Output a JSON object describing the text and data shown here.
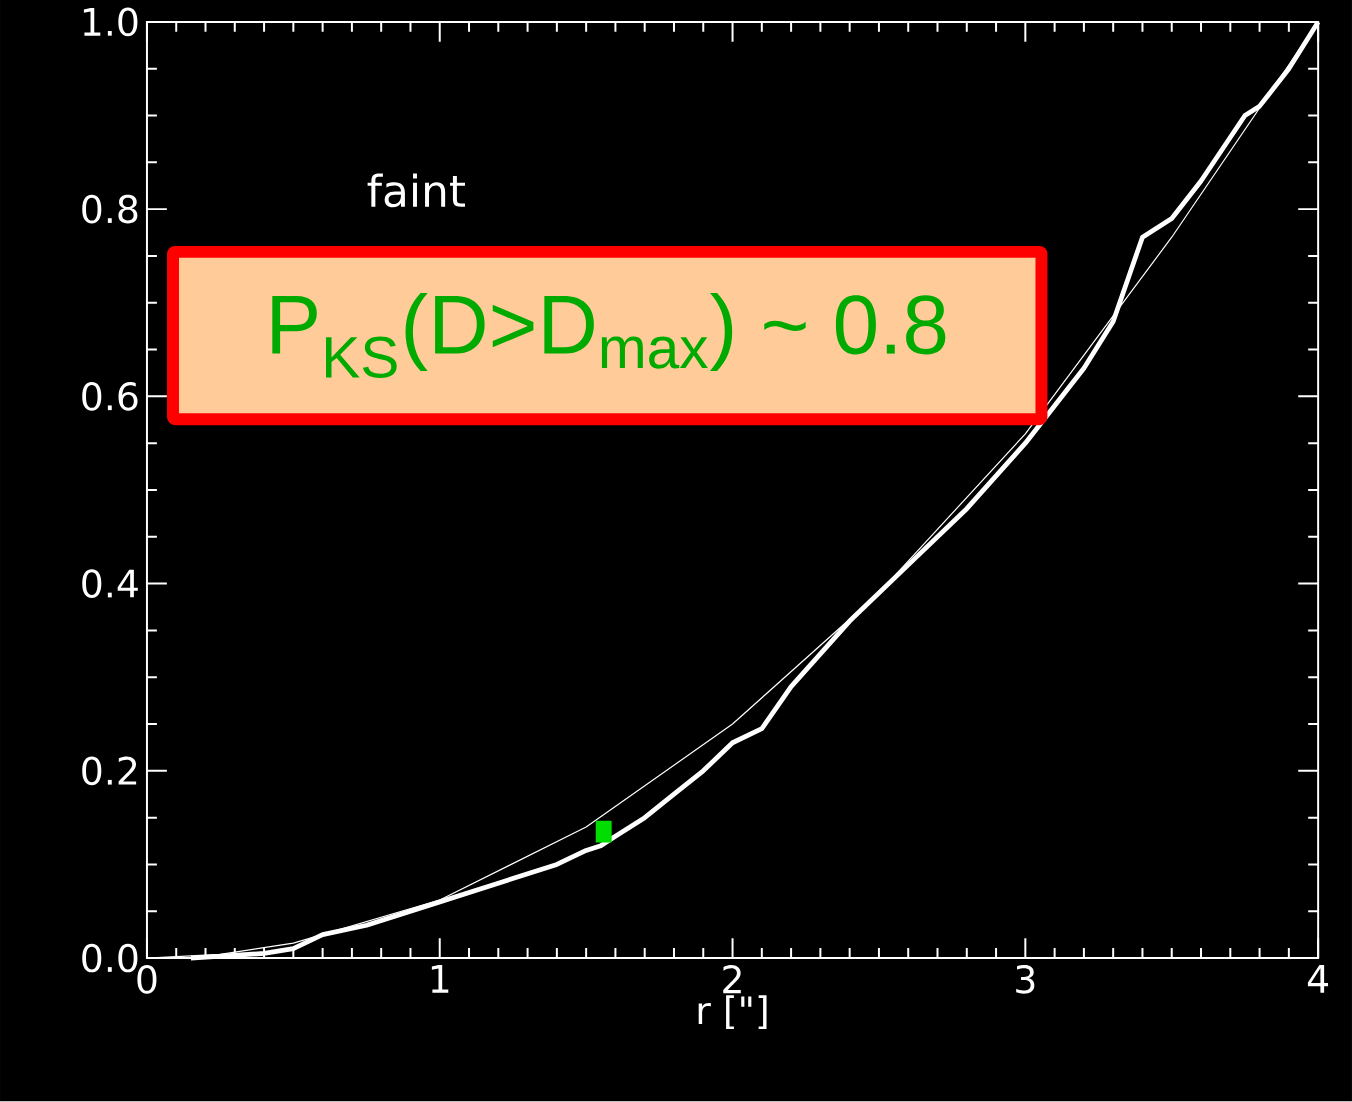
{
  "chart_data": {
    "type": "line",
    "xlabel": "r [\"]",
    "xlim": [
      0,
      4
    ],
    "ylim": [
      0,
      1
    ],
    "xticks": [
      0,
      1,
      2,
      3,
      4
    ],
    "yticks": [
      {
        "value": 0,
        "label": "0.0"
      },
      {
        "value": 0.2,
        "label": "0.2"
      },
      {
        "value": 0.4,
        "label": "0.4"
      },
      {
        "value": 0.6,
        "label": "0.6"
      },
      {
        "value": 0.8,
        "label": "0.8"
      },
      {
        "value": 1,
        "label": "1.0"
      }
    ],
    "annotations": [
      "faint",
      "P$_{KS}$(D>D$_{max}$) ~ 0.8"
    ],
    "series": [
      {
        "color": "#ffffff",
        "x": [
          0.15,
          0.4,
          0.5,
          0.6,
          0.75,
          1.0,
          1.2,
          1.4,
          1.5,
          1.55,
          1.6,
          1.7,
          1.8,
          1.9,
          2.0,
          2.1,
          2.2,
          2.4,
          2.6,
          2.8,
          3.0,
          3.2,
          3.3,
          3.4,
          3.5,
          3.6,
          3.75,
          3.8,
          3.9,
          4.0
        ],
        "values": [
          0,
          0.005,
          0.01,
          0.025,
          0.035,
          0.06,
          0.08,
          0.1,
          0.115,
          0.12,
          0.13,
          0.15,
          0.175,
          0.2,
          0.23,
          0.245,
          0.29,
          0.36,
          0.42,
          0.48,
          0.55,
          0.63,
          0.68,
          0.77,
          0.79,
          0.83,
          0.9,
          0.91,
          0.95,
          1.0
        ]
      },
      {
        "color": "#ffffff",
        "x": [
          0,
          0.25,
          0.5,
          1,
          1.5,
          2,
          2.5,
          3,
          3.5,
          4
        ],
        "values": [
          0,
          0.004,
          0.016,
          0.062,
          0.14,
          0.25,
          0.39,
          0.56,
          0.77,
          1.0
        ]
      },
      {
        "color": "#00dd00",
        "type": "scatter",
        "marker": "square",
        "x": [
          1.56
        ],
        "values": [
          0.135
        ]
      }
    ]
  }
}
